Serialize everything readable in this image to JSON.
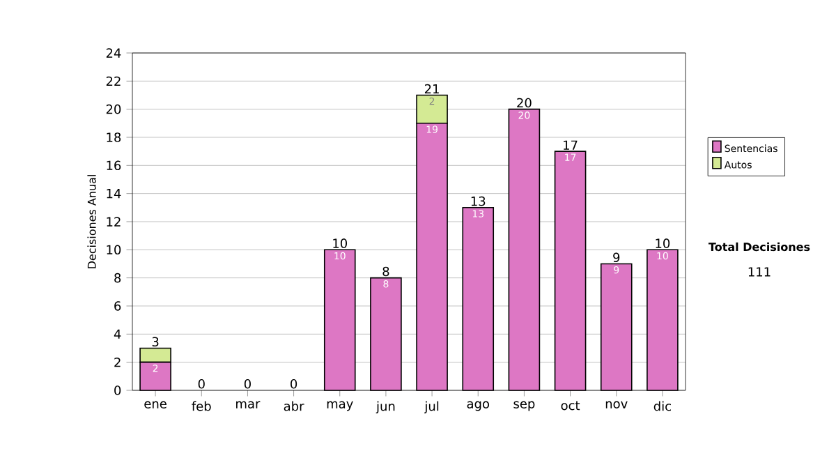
{
  "chart_data": {
    "type": "bar",
    "stacked": true,
    "ylabel": "Decisiones Anual",
    "categories": [
      "ene",
      "feb",
      "mar",
      "abr",
      "may",
      "jun",
      "jul",
      "ago",
      "sep",
      "oct",
      "nov",
      "dic"
    ],
    "series": [
      {
        "name": "Sentencias",
        "color": "#dd77c4",
        "values": [
          2,
          0,
          0,
          0,
          10,
          8,
          19,
          13,
          20,
          17,
          9,
          10
        ],
        "value_labels": [
          "2",
          null,
          null,
          null,
          "10",
          "8",
          "19",
          "13",
          "20",
          "17",
          "9",
          "10"
        ]
      },
      {
        "name": "Autos",
        "color": "#d4ea94",
        "values": [
          1,
          0,
          0,
          0,
          0,
          0,
          2,
          0,
          0,
          0,
          0,
          0
        ],
        "value_labels": [
          null,
          null,
          null,
          null,
          null,
          null,
          "2",
          null,
          null,
          null,
          null,
          null
        ]
      }
    ],
    "totals": [
      "3",
      "0",
      "0",
      "0",
      "10",
      "8",
      "21",
      "13",
      "20",
      "17",
      "9",
      "10"
    ],
    "ylim": [
      0,
      24
    ],
    "yticks": [
      0,
      2,
      4,
      6,
      8,
      10,
      12,
      14,
      16,
      18,
      20,
      22,
      24
    ],
    "grid": "y",
    "legend": "right",
    "annotations": [
      "Total Decisiones",
      "111"
    ]
  }
}
